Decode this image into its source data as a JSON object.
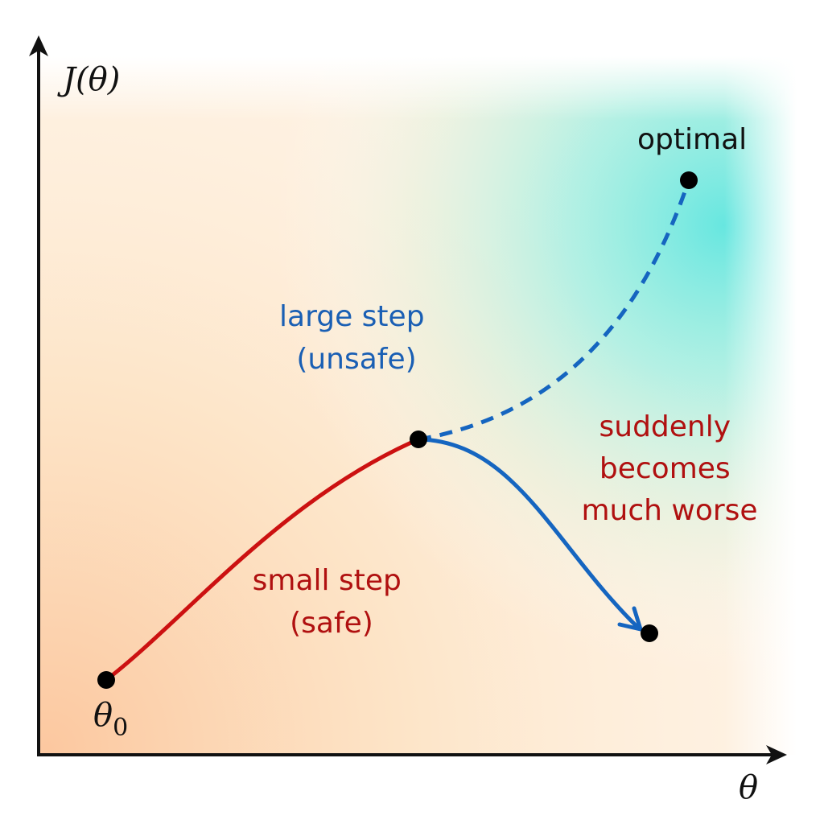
{
  "axes": {
    "y_label": "J(θ)",
    "x_label": "θ"
  },
  "points": {
    "start_label": "θ",
    "start_subscript": "0",
    "optimal_label": "optimal"
  },
  "annotations": {
    "large_step_line1": "large step",
    "large_step_line2": "(unsafe)",
    "small_step_line1": "small step",
    "small_step_line2": "(safe)",
    "worse_line1": "suddenly",
    "worse_line2": "becomes",
    "worse_line3": "much worse"
  },
  "colors": {
    "red_path": "#cc1111",
    "blue_path": "#1565c0",
    "blue_text": "#1a5fb4",
    "red_text": "#b01010",
    "background_warm": "#fcc8a0",
    "background_cool": "#5fe6e0",
    "axis": "#111111",
    "point": "#000000"
  }
}
